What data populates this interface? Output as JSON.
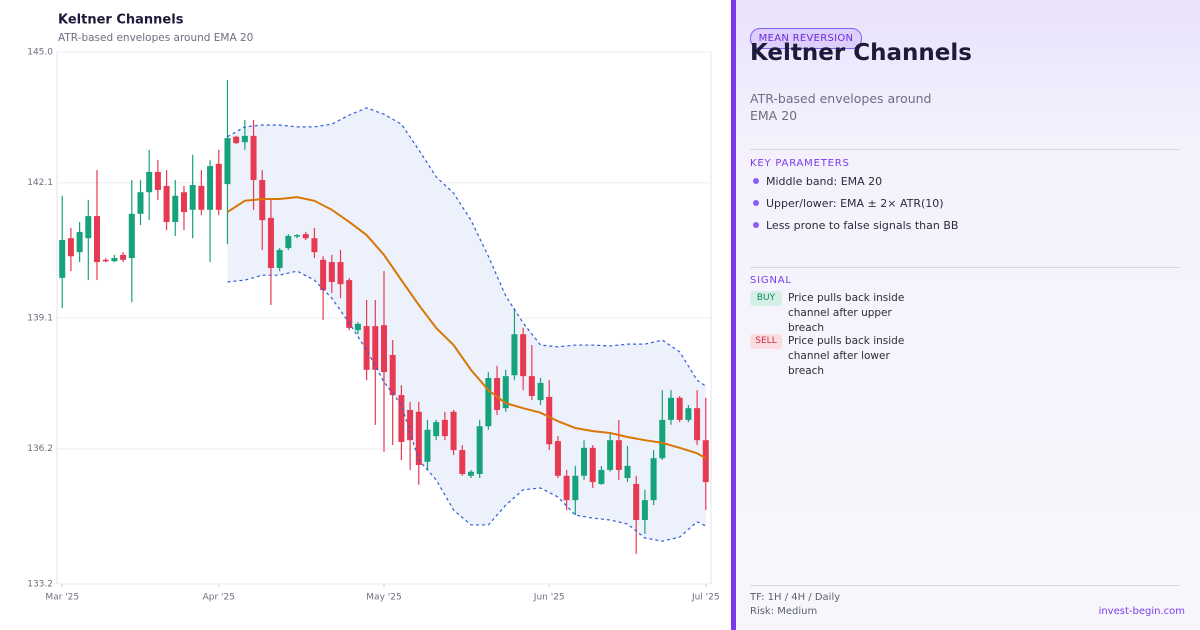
{
  "chart_data": {
    "type": "candlestick",
    "title": "Keltner Channels",
    "subtitle": "ATR-based envelopes around EMA 20",
    "xlim": [
      -0.6,
      74.6
    ],
    "xticks": [
      {
        "value": 0,
        "label": "Mar '25"
      },
      {
        "value": 18,
        "label": "Apr '25"
      },
      {
        "value": 37,
        "label": "May '25"
      },
      {
        "value": 56,
        "label": "Jun '25"
      },
      {
        "value": 74,
        "label": "Jul '25"
      }
    ],
    "ylim": [
      133.2,
      145
    ],
    "yticks": [
      133.2,
      136.2,
      139.1,
      142.1,
      {
        "value": 145,
        "label": "145.0"
      }
    ],
    "grid": true,
    "up_color": "#16a37c",
    "down_color": "#e63a52",
    "open": [
      139.99,
      140.87,
      140.56,
      140.87,
      141.36,
      140.39,
      140.36,
      140.5,
      140.43,
      141.41,
      141.89,
      142.34,
      142.03,
      141.23,
      141.89,
      141.5,
      142.03,
      141.5,
      142.52,
      142.07,
      143.12,
      143.0,
      143.14,
      142.16,
      141.32,
      140.21,
      140.65,
      140.92,
      140.96,
      140.87,
      140.39,
      140.34,
      140.34,
      139.94,
      138.83,
      138.92,
      138.92,
      138.94,
      138.28,
      137.39,
      137.06,
      137.02,
      135.91,
      136.48,
      136.84,
      137.02,
      136.17,
      135.6,
      135.64,
      136.7,
      137.77,
      137.1,
      137.83,
      138.74,
      137.81,
      137.28,
      137.35,
      136.37,
      135.6,
      135.06,
      135.6,
      136.22,
      135.42,
      135.73,
      136.39,
      135.55,
      135.42,
      134.62,
      135.06,
      135.99,
      136.84,
      137.33,
      136.84,
      137.1,
      136.39
    ],
    "high": [
      141.81,
      141.1,
      141.23,
      141.72,
      142.38,
      140.43,
      140.5,
      140.56,
      142.16,
      142.16,
      142.83,
      142.6,
      142.38,
      142.16,
      142.03,
      142.72,
      142.38,
      142.6,
      142.83,
      144.38,
      143.14,
      143.49,
      143.49,
      142.38,
      141.72,
      140.65,
      140.96,
      140.96,
      141.01,
      141.1,
      140.47,
      140.5,
      140.61,
      139.99,
      139.01,
      139.5,
      139.5,
      140.14,
      138.61,
      137.61,
      137.24,
      137.24,
      136.84,
      136.84,
      137.02,
      137.06,
      136.28,
      135.73,
      136.84,
      137.9,
      138.04,
      137.95,
      139.32,
      138.88,
      138.5,
      137.77,
      137.72,
      136.48,
      135.73,
      135.82,
      136.39,
      136.28,
      135.82,
      136.57,
      136.84,
      136.26,
      135.6,
      135.29,
      136.17,
      137.5,
      137.5,
      137.37,
      137.17,
      137.5,
      137.33
    ],
    "low": [
      139.32,
      140.14,
      140.34,
      139.94,
      139.94,
      140.34,
      140.34,
      140.34,
      139.45,
      141.16,
      141.27,
      141.72,
      141.05,
      140.92,
      141.05,
      140.87,
      141.38,
      140.34,
      141.38,
      140.74,
      142.96,
      142.83,
      141.5,
      140.61,
      139.39,
      140.14,
      140.61,
      140.87,
      140.83,
      140.43,
      139.06,
      139.65,
      139.54,
      138.83,
      138.74,
      137.72,
      136.73,
      136.13,
      136.28,
      135.95,
      135.73,
      135.4,
      135.73,
      136.39,
      136.39,
      136.06,
      135.6,
      135.55,
      135.55,
      136.62,
      136.95,
      137.02,
      137.72,
      137.5,
      137.28,
      137.17,
      136.17,
      135.55,
      134.84,
      134.73,
      135.51,
      135.33,
      135.4,
      135.69,
      135.51,
      135.46,
      133.87,
      134.31,
      134.95,
      135.95,
      136.73,
      136.79,
      136.79,
      136.28,
      134.84
    ],
    "close": [
      140.83,
      140.47,
      141.01,
      141.36,
      140.34,
      140.36,
      140.43,
      140.39,
      141.41,
      141.89,
      142.34,
      141.94,
      141.23,
      141.81,
      141.45,
      142.05,
      141.5,
      142.47,
      141.5,
      143.09,
      142.98,
      143.14,
      142.16,
      141.27,
      140.21,
      140.61,
      140.92,
      140.94,
      140.87,
      140.56,
      139.72,
      139.9,
      139.85,
      138.88,
      138.97,
      137.95,
      137.95,
      137.9,
      137.39,
      136.35,
      136.39,
      135.84,
      136.62,
      136.79,
      136.48,
      136.17,
      135.64,
      135.69,
      136.7,
      137.77,
      137.06,
      137.81,
      138.74,
      137.81,
      137.37,
      137.66,
      136.3,
      135.6,
      135.06,
      135.6,
      136.22,
      135.46,
      135.73,
      136.39,
      135.73,
      135.82,
      134.62,
      135.06,
      135.99,
      136.84,
      137.33,
      136.84,
      137.1,
      136.39,
      135.46
    ],
    "band_fill": "#edf1fb",
    "lines": [
      {
        "style": "solid",
        "color": "#d97706",
        "x": [
          19,
          21,
          23,
          25,
          27,
          29,
          31,
          33,
          35,
          37,
          39,
          41,
          43,
          45,
          47,
          49,
          51,
          53,
          55,
          57,
          59,
          61,
          63,
          65,
          67,
          69,
          71,
          73,
          74
        ],
        "values": [
          141.45,
          141.7,
          141.74,
          141.74,
          141.78,
          141.7,
          141.5,
          141.23,
          140.94,
          140.5,
          139.94,
          139.39,
          138.88,
          138.5,
          137.95,
          137.5,
          137.21,
          137.1,
          137.0,
          136.81,
          136.66,
          136.59,
          136.55,
          136.46,
          136.39,
          136.33,
          136.22,
          136.1,
          135.99
        ]
      },
      {
        "style": "dashed",
        "color": "#2f5fd6",
        "x": [
          19,
          21,
          23,
          25,
          27,
          29,
          31,
          33,
          35,
          37,
          39,
          41,
          43,
          45,
          47,
          49,
          51,
          53,
          55,
          57,
          59,
          61,
          63,
          65,
          67,
          69,
          71,
          73,
          74
        ],
        "values": [
          143.12,
          143.34,
          143.38,
          143.38,
          143.34,
          143.34,
          143.4,
          143.6,
          143.76,
          143.62,
          143.4,
          142.83,
          142.23,
          141.87,
          141.27,
          140.47,
          139.59,
          138.99,
          138.5,
          138.46,
          138.5,
          138.5,
          138.48,
          138.52,
          138.52,
          138.61,
          138.35,
          137.72,
          137.59
        ]
      },
      {
        "style": "dashed",
        "color": "#2f5fd6",
        "x": [
          19,
          21,
          23,
          25,
          27,
          29,
          31,
          33,
          35,
          37,
          39,
          41,
          43,
          45,
          47,
          49,
          51,
          53,
          55,
          57,
          59,
          61,
          63,
          65,
          67,
          69,
          71,
          73,
          74
        ],
        "values": [
          139.9,
          139.94,
          140.05,
          140.05,
          140.14,
          139.94,
          139.54,
          138.99,
          138.39,
          137.68,
          137.17,
          135.95,
          135.51,
          134.84,
          134.51,
          134.51,
          134.95,
          135.29,
          135.33,
          135.13,
          134.73,
          134.66,
          134.62,
          134.53,
          134.22,
          134.15,
          134.24,
          134.58,
          134.49
        ]
      }
    ]
  },
  "panel": {
    "badge": "MEAN REVERSION",
    "title": "Keltner Channels",
    "subtitle": "ATR-based envelopes around EMA 20",
    "params_heading": "KEY PARAMETERS",
    "params": [
      "Middle band: EMA 20",
      "Upper/lower: EMA ± 2× ATR(10)",
      "Less prone to false signals than BB"
    ],
    "signal_heading": "SIGNAL",
    "signals": [
      {
        "tag": "BUY",
        "text": "Price pulls back inside channel after upper breach"
      },
      {
        "tag": "SELL",
        "text": "Price pulls back inside channel after lower breach"
      }
    ],
    "footer": {
      "timeframes": "TF: 1H / 4H / Daily",
      "risk": "Risk: Medium",
      "site": "invest-begin.com"
    }
  }
}
